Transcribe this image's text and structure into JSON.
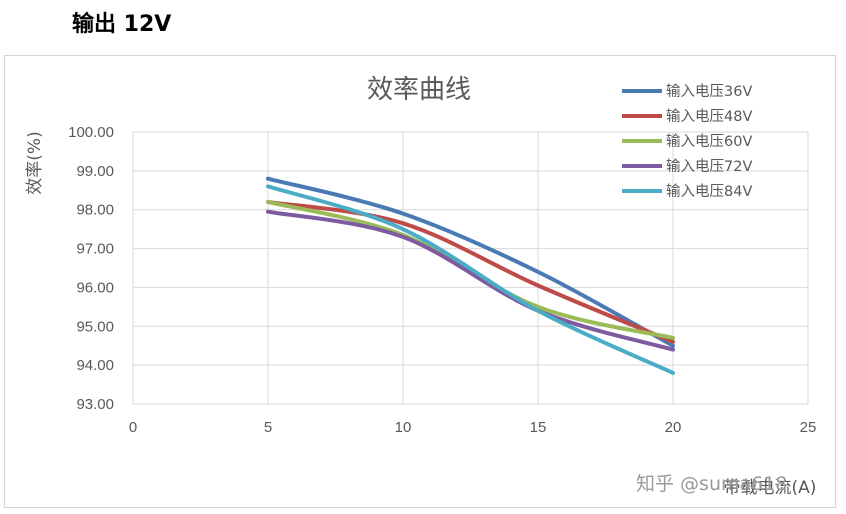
{
  "heading": "输出 12V",
  "chart_data": {
    "type": "line",
    "title": "效率曲线",
    "xlabel": "带载电流(A)",
    "ylabel": "效率(%)",
    "x": [
      5,
      10,
      15,
      20
    ],
    "xlim": [
      0,
      25
    ],
    "ylim": [
      93,
      100
    ],
    "xticks": [
      "0",
      "5",
      "10",
      "15",
      "20",
      "25"
    ],
    "yticks": [
      "93.00",
      "94.00",
      "95.00",
      "96.00",
      "97.00",
      "98.00",
      "99.00",
      "100.00"
    ],
    "grid": true,
    "smooth": true,
    "legend_position": "top-right",
    "series": [
      {
        "name": "输入电压36V",
        "color": "#4a7ab3",
        "values": [
          98.8,
          97.9,
          96.4,
          94.5
        ]
      },
      {
        "name": "输入电压48V",
        "color": "#bf4b48",
        "values": [
          98.2,
          97.65,
          96.05,
          94.6
        ]
      },
      {
        "name": "输入电压60V",
        "color": "#9bbb59",
        "values": [
          98.2,
          97.35,
          95.5,
          94.7
        ]
      },
      {
        "name": "输入电压72V",
        "color": "#7e5ba0",
        "values": [
          97.95,
          97.3,
          95.4,
          94.4
        ]
      },
      {
        "name": "输入电压84V",
        "color": "#4bacc6",
        "values": [
          98.6,
          97.5,
          95.4,
          93.8
        ]
      }
    ]
  },
  "watermark": "知乎 @suma618"
}
